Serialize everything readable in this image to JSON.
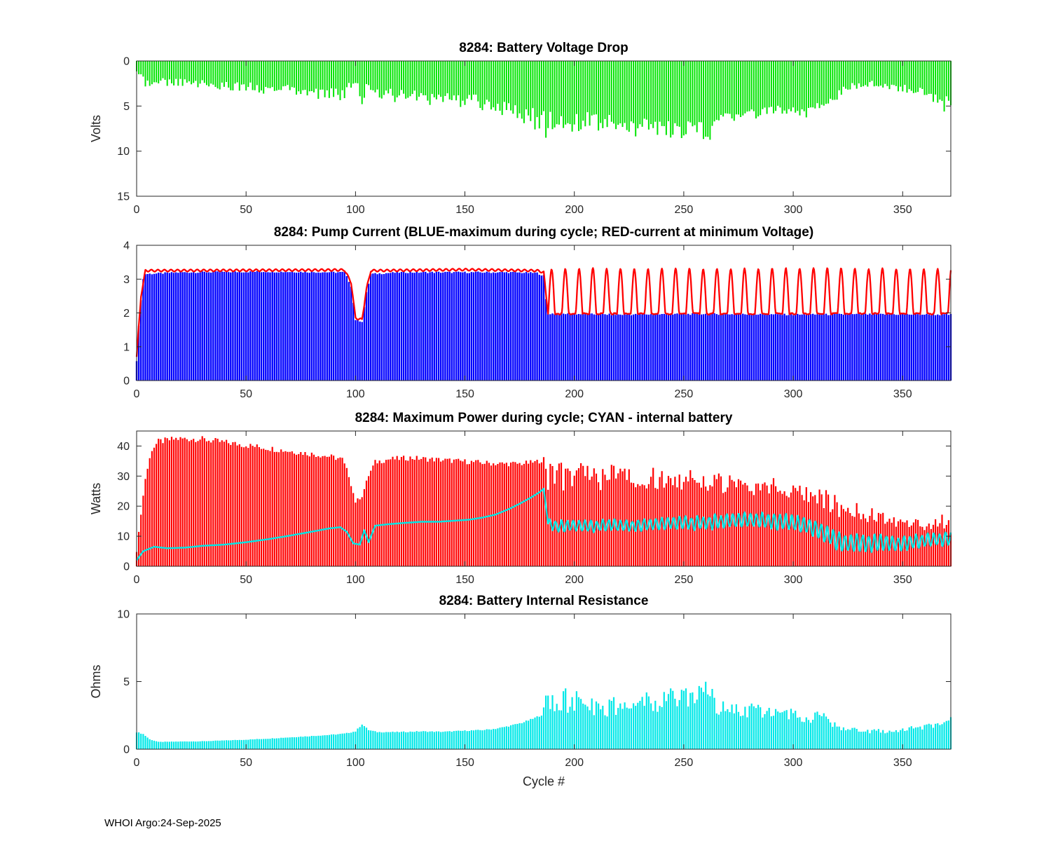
{
  "page": {
    "footer": "WHOI Argo:24-Sep-2025"
  },
  "chart_data": [
    {
      "id": "battery-voltage-drop",
      "type": "bar",
      "title": "8284: Battery Voltage Drop",
      "ylabel": "Volts",
      "bar_color": "#00e400",
      "ylim": [
        0,
        15
      ],
      "y_reversed": true,
      "y_ticks": [
        0,
        5,
        10,
        15
      ],
      "xlim": [
        0,
        372
      ],
      "x_ticks": [
        0,
        50,
        100,
        150,
        200,
        250,
        300,
        350
      ],
      "envelope_max": [
        [
          0,
          2.2
        ],
        [
          5,
          3
        ],
        [
          15,
          2.8
        ],
        [
          30,
          3
        ],
        [
          50,
          3.4
        ],
        [
          70,
          4
        ],
        [
          85,
          4.4
        ],
        [
          95,
          4.5
        ],
        [
          100,
          2.6
        ],
        [
          103,
          4.8
        ],
        [
          106,
          3
        ],
        [
          110,
          4.4
        ],
        [
          130,
          4.8
        ],
        [
          150,
          5.2
        ],
        [
          160,
          5.6
        ],
        [
          168,
          6.2
        ],
        [
          175,
          7
        ],
        [
          182,
          7.6
        ],
        [
          187,
          8.6
        ],
        [
          193,
          7.6
        ],
        [
          200,
          8.2
        ],
        [
          207,
          7.4
        ],
        [
          214,
          8.4
        ],
        [
          222,
          7.6
        ],
        [
          229,
          8.6
        ],
        [
          236,
          8
        ],
        [
          243,
          9
        ],
        [
          250,
          9.2
        ],
        [
          257,
          8.8
        ],
        [
          262,
          9.4
        ],
        [
          266,
          7.4
        ],
        [
          272,
          6.8
        ],
        [
          280,
          6.6
        ],
        [
          290,
          6.2
        ],
        [
          298,
          6
        ],
        [
          305,
          6.4
        ],
        [
          311,
          5.6
        ],
        [
          317,
          5
        ],
        [
          323,
          3.8
        ],
        [
          330,
          3
        ],
        [
          338,
          2.8
        ],
        [
          345,
          3.2
        ],
        [
          352,
          3.6
        ],
        [
          358,
          4
        ],
        [
          364,
          4.6
        ],
        [
          368,
          6
        ],
        [
          372,
          5
        ]
      ],
      "envelope_min": [
        [
          0,
          0.7
        ],
        [
          10,
          1.4
        ],
        [
          30,
          1.7
        ],
        [
          50,
          1.9
        ],
        [
          70,
          2.1
        ],
        [
          90,
          2.4
        ],
        [
          100,
          1.4
        ],
        [
          110,
          2.4
        ],
        [
          150,
          2.9
        ],
        [
          170,
          3.4
        ],
        [
          180,
          3.9
        ],
        [
          187,
          4.4
        ],
        [
          200,
          4.8
        ],
        [
          220,
          5
        ],
        [
          240,
          5.3
        ],
        [
          260,
          5.4
        ],
        [
          280,
          4.6
        ],
        [
          300,
          4.4
        ],
        [
          315,
          3.8
        ],
        [
          325,
          2
        ],
        [
          340,
          1.9
        ],
        [
          355,
          2.4
        ],
        [
          368,
          3
        ],
        [
          372,
          3
        ]
      ]
    },
    {
      "id": "pump-current",
      "type": "bar+line",
      "title": "8284: Pump Current (BLUE-maximum during cycle; RED-current at minimum Voltage)",
      "ylabel": "",
      "bar_color": "#0000ff",
      "line_color": "#ff0000",
      "ylim": [
        0,
        4
      ],
      "y_reversed": false,
      "y_ticks": [
        0,
        1,
        2,
        3,
        4
      ],
      "xlim": [
        0,
        372
      ],
      "x_ticks": [
        0,
        50,
        100,
        150,
        200,
        250,
        300,
        350
      ],
      "bars": [
        [
          0,
          0.6
        ],
        [
          1,
          1.6
        ],
        [
          2,
          2.4
        ],
        [
          3,
          3.0
        ],
        [
          4,
          3.15
        ],
        [
          20,
          3.2
        ],
        [
          60,
          3.22
        ],
        [
          95,
          3.2
        ],
        [
          98,
          2.8
        ],
        [
          100,
          1.8
        ],
        [
          103,
          1.75
        ],
        [
          105,
          2.6
        ],
        [
          107,
          3.15
        ],
        [
          120,
          3.2
        ],
        [
          150,
          3.2
        ],
        [
          170,
          3.2
        ],
        [
          183,
          3.18
        ],
        [
          186,
          3.1
        ],
        [
          187,
          2.4
        ],
        [
          188,
          1.98
        ],
        [
          220,
          1.95
        ],
        [
          260,
          1.97
        ],
        [
          300,
          1.95
        ],
        [
          340,
          1.96
        ],
        [
          372,
          1.95
        ]
      ],
      "line_base": [
        [
          0,
          0.7
        ],
        [
          2,
          2.5
        ],
        [
          4,
          3.25
        ],
        [
          95,
          3.27
        ],
        [
          98,
          2.9
        ],
        [
          100,
          1.85
        ],
        [
          103,
          1.8
        ],
        [
          105,
          2.7
        ],
        [
          107,
          3.25
        ],
        [
          150,
          3.28
        ],
        [
          183,
          3.25
        ],
        [
          186,
          3.2
        ],
        [
          188,
          1.95
        ],
        [
          372,
          1.95
        ]
      ],
      "line_osc": {
        "start": 188,
        "period": 6.3,
        "min": 1.95,
        "max": 3.28
      }
    },
    {
      "id": "max-power",
      "type": "bar+line",
      "title": "8284: Maximum Power during cycle; CYAN - internal battery",
      "ylabel": "Watts",
      "bar_color": "#ff0000",
      "line_color": "#00e6e6",
      "ylim": [
        0,
        45
      ],
      "y_reversed": false,
      "y_ticks": [
        0,
        10,
        20,
        30,
        40
      ],
      "xlim": [
        0,
        372
      ],
      "x_ticks": [
        0,
        50,
        100,
        150,
        200,
        250,
        300,
        350
      ],
      "solid_until": 186,
      "envelope_max": [
        [
          0,
          5
        ],
        [
          2,
          18
        ],
        [
          4,
          30
        ],
        [
          7,
          40
        ],
        [
          10,
          42.5
        ],
        [
          18,
          43.5
        ],
        [
          28,
          43.5
        ],
        [
          38,
          42.5
        ],
        [
          48,
          41.5
        ],
        [
          58,
          40.5
        ],
        [
          68,
          39.5
        ],
        [
          78,
          38.5
        ],
        [
          88,
          37.5
        ],
        [
          94,
          36.5
        ],
        [
          97,
          31
        ],
        [
          100,
          22
        ],
        [
          103,
          24
        ],
        [
          106,
          31
        ],
        [
          109,
          35.5
        ],
        [
          115,
          36.5
        ],
        [
          125,
          37
        ],
        [
          135,
          36.5
        ],
        [
          145,
          36
        ],
        [
          155,
          35.5
        ],
        [
          165,
          35
        ],
        [
          175,
          35
        ],
        [
          182,
          35.5
        ],
        [
          186,
          36.5
        ],
        [
          190,
          34.5
        ],
        [
          200,
          35
        ],
        [
          212,
          34
        ],
        [
          224,
          34
        ],
        [
          236,
          33
        ],
        [
          248,
          32.5
        ],
        [
          260,
          32
        ],
        [
          272,
          31
        ],
        [
          284,
          30
        ],
        [
          296,
          29.5
        ],
        [
          304,
          28.5
        ],
        [
          310,
          27.5
        ],
        [
          316,
          25
        ],
        [
          322,
          23
        ],
        [
          330,
          21
        ],
        [
          340,
          19
        ],
        [
          350,
          17
        ],
        [
          358,
          15.5
        ],
        [
          364,
          15
        ],
        [
          368,
          20
        ],
        [
          372,
          14
        ]
      ],
      "envelope_min": [
        [
          186,
          36.5
        ],
        [
          188,
          19
        ],
        [
          210,
          21
        ],
        [
          240,
          22
        ],
        [
          270,
          21
        ],
        [
          300,
          19
        ],
        [
          315,
          14
        ],
        [
          330,
          12
        ],
        [
          350,
          11
        ],
        [
          372,
          9
        ]
      ],
      "line": [
        [
          0,
          2
        ],
        [
          3,
          5
        ],
        [
          8,
          6.5
        ],
        [
          14,
          6
        ],
        [
          22,
          6.2
        ],
        [
          30,
          6.8
        ],
        [
          40,
          7.2
        ],
        [
          50,
          8
        ],
        [
          60,
          9
        ],
        [
          70,
          10.2
        ],
        [
          80,
          11.5
        ],
        [
          88,
          12.6
        ],
        [
          93,
          13
        ],
        [
          96,
          11.5
        ],
        [
          99,
          7.6
        ],
        [
          102,
          7.2
        ],
        [
          104,
          12
        ],
        [
          106,
          8
        ],
        [
          109,
          13.5
        ],
        [
          115,
          14
        ],
        [
          122,
          14.4
        ],
        [
          130,
          14.8
        ],
        [
          138,
          14.8
        ],
        [
          146,
          15.2
        ],
        [
          152,
          15.5
        ],
        [
          158,
          16.2
        ],
        [
          164,
          17.2
        ],
        [
          170,
          19
        ],
        [
          175,
          20.8
        ],
        [
          180,
          22.8
        ],
        [
          184,
          24.6
        ],
        [
          186,
          25.8
        ],
        [
          188,
          14.2
        ],
        [
          193,
          13.2
        ],
        [
          200,
          13.6
        ],
        [
          208,
          13.2
        ],
        [
          216,
          13.8
        ],
        [
          224,
          13.4
        ],
        [
          232,
          13.8
        ],
        [
          240,
          14.2
        ],
        [
          248,
          14.6
        ],
        [
          256,
          14.4
        ],
        [
          264,
          14.8
        ],
        [
          272,
          15.2
        ],
        [
          280,
          15.4
        ],
        [
          288,
          15.2
        ],
        [
          296,
          14.6
        ],
        [
          302,
          14
        ],
        [
          308,
          13.2
        ],
        [
          312,
          12
        ],
        [
          316,
          10
        ],
        [
          320,
          8.4
        ],
        [
          325,
          7.6
        ],
        [
          330,
          8
        ],
        [
          336,
          7.6
        ],
        [
          342,
          8
        ],
        [
          348,
          7.4
        ],
        [
          354,
          8
        ],
        [
          360,
          8.6
        ],
        [
          366,
          8.8
        ],
        [
          372,
          9.4
        ]
      ],
      "line_osc": {
        "start": 188,
        "period": 2.7,
        "amp": [
          [
            188,
            2.2
          ],
          [
            230,
            2.2
          ],
          [
            260,
            2.6
          ],
          [
            285,
            3
          ],
          [
            300,
            3
          ],
          [
            312,
            3.2
          ],
          [
            322,
            3.2
          ],
          [
            340,
            3
          ],
          [
            356,
            2.6
          ],
          [
            372,
            2.4
          ]
        ]
      }
    },
    {
      "id": "internal-resistance",
      "type": "bar",
      "title": "8284: Battery Internal Resistance",
      "ylabel": "Ohms",
      "xlabel": "Cycle #",
      "bar_color": "#00e8e8",
      "ylim": [
        0,
        10
      ],
      "y_reversed": false,
      "y_ticks": [
        0,
        5,
        10
      ],
      "xlim": [
        0,
        372
      ],
      "x_ticks": [
        0,
        50,
        100,
        150,
        200,
        250,
        300,
        350
      ],
      "solid_until": 185,
      "envelope_max": [
        [
          0,
          1.3
        ],
        [
          3,
          1.15
        ],
        [
          6,
          0.75
        ],
        [
          10,
          0.55
        ],
        [
          20,
          0.58
        ],
        [
          30,
          0.6
        ],
        [
          40,
          0.66
        ],
        [
          50,
          0.72
        ],
        [
          60,
          0.8
        ],
        [
          70,
          0.9
        ],
        [
          80,
          1.0
        ],
        [
          88,
          1.08
        ],
        [
          95,
          1.18
        ],
        [
          100,
          1.35
        ],
        [
          103,
          1.9
        ],
        [
          106,
          1.45
        ],
        [
          110,
          1.3
        ],
        [
          120,
          1.3
        ],
        [
          130,
          1.35
        ],
        [
          140,
          1.32
        ],
        [
          150,
          1.4
        ],
        [
          158,
          1.45
        ],
        [
          164,
          1.55
        ],
        [
          170,
          1.75
        ],
        [
          176,
          2.0
        ],
        [
          181,
          2.3
        ],
        [
          185,
          2.6
        ],
        [
          187,
          4.7
        ],
        [
          191,
          4.4
        ],
        [
          195,
          4.6
        ],
        [
          199,
          4.2
        ],
        [
          203,
          4.5
        ],
        [
          207,
          3.9
        ],
        [
          211,
          3.5
        ],
        [
          215,
          3.7
        ],
        [
          219,
          3.9
        ],
        [
          223,
          3.6
        ],
        [
          227,
          4.0
        ],
        [
          231,
          4.1
        ],
        [
          235,
          4.3
        ],
        [
          239,
          4.4
        ],
        [
          243,
          4.5
        ],
        [
          247,
          4.7
        ],
        [
          251,
          4.6
        ],
        [
          255,
          4.8
        ],
        [
          259,
          5.0
        ],
        [
          262,
          5.0
        ],
        [
          265,
          3.7
        ],
        [
          269,
          3.6
        ],
        [
          273,
          3.8
        ],
        [
          277,
          3.6
        ],
        [
          281,
          3.5
        ],
        [
          285,
          3.4
        ],
        [
          289,
          3.2
        ],
        [
          294,
          3.1
        ],
        [
          299,
          3.1
        ],
        [
          304,
          2.95
        ],
        [
          309,
          2.9
        ],
        [
          313,
          2.8
        ],
        [
          317,
          2.3
        ],
        [
          321,
          1.9
        ],
        [
          325,
          1.7
        ],
        [
          329,
          1.55
        ],
        [
          334,
          1.45
        ],
        [
          339,
          1.5
        ],
        [
          344,
          1.5
        ],
        [
          349,
          1.6
        ],
        [
          354,
          1.7
        ],
        [
          359,
          1.8
        ],
        [
          363,
          1.95
        ],
        [
          367,
          2.2
        ],
        [
          372,
          2.4
        ]
      ],
      "envelope_min": [
        [
          185,
          2.6
        ],
        [
          188,
          1.9
        ],
        [
          210,
          1.8
        ],
        [
          230,
          1.9
        ],
        [
          250,
          2.0
        ],
        [
          262,
          2.1
        ],
        [
          270,
          1.9
        ],
        [
          285,
          1.8
        ],
        [
          300,
          1.7
        ],
        [
          315,
          1.4
        ],
        [
          325,
          1.1
        ],
        [
          340,
          1.0
        ],
        [
          355,
          1.2
        ],
        [
          365,
          1.4
        ],
        [
          372,
          1.5
        ]
      ]
    }
  ]
}
